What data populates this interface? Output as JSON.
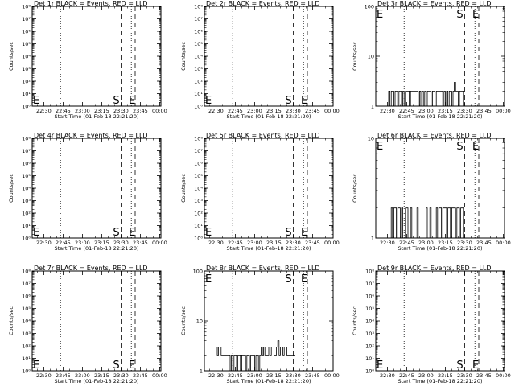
{
  "chart_data": {
    "type": "line",
    "x_tick_labels": [
      "22:30",
      "22:45",
      "23:00",
      "23:15",
      "23:30",
      "23:45",
      "00:00"
    ],
    "x_ticks_minutes": [
      0,
      15,
      30,
      45,
      60,
      75,
      90
    ],
    "xlabel": "Start Time (01-Feb-18 22:21:20)",
    "ylabel": "Counts/sec",
    "x_span_minutes": [
      -9,
      91
    ],
    "markers": {
      "dotted_lines_at": [
        "22:43",
        "23:38"
      ],
      "S_dashed_at": "23:30",
      "E_dashed_at": "23:41",
      "start_E_at_left": true
    },
    "panels": [
      {
        "title": "Det 1r BLACK = Events, RED = LLD",
        "scale": "log",
        "ylim": [
          1,
          100000000
        ],
        "yticks": [
          1,
          10,
          100,
          1000,
          10000,
          100000,
          1000000,
          10000000,
          100000000
        ],
        "ytick_labels": [
          "10⁰",
          "10¹",
          "10²",
          "10³",
          "10⁴",
          "10⁵",
          "10⁶",
          "10⁷",
          "10⁸"
        ],
        "labelS": true,
        "series": {
          "x": [],
          "y": []
        }
      },
      {
        "title": "Det 2r BLACK = Events, RED = LLD",
        "scale": "log",
        "ylim": [
          1,
          100000000
        ],
        "yticks": [
          1,
          10,
          100,
          1000,
          10000,
          100000,
          1000000,
          10000000,
          100000000
        ],
        "ytick_labels": [
          "10⁰",
          "10¹",
          "10²",
          "10³",
          "10⁴",
          "10⁵",
          "10⁶",
          "10⁷",
          "10⁸"
        ],
        "labelS": true,
        "series": {
          "x": [],
          "y": []
        }
      },
      {
        "title": "Det 3r BLACK = Events, RED = LLD",
        "scale": "log",
        "ylim": [
          1,
          100
        ],
        "yticks": [
          1,
          10,
          100
        ],
        "ytick_labels": [
          "1",
          "10",
          "100"
        ],
        "labelS": true,
        "series": {
          "x": [
            0,
            1,
            2,
            3,
            4,
            5,
            6,
            7,
            8,
            9,
            10,
            11,
            12,
            13,
            14,
            15,
            16,
            17,
            18,
            19,
            20,
            21,
            22,
            23,
            24,
            25,
            26,
            27,
            28,
            29,
            30,
            31,
            32,
            33,
            34,
            35,
            36,
            37,
            38,
            39,
            40,
            41,
            42,
            43,
            44,
            45,
            46,
            47,
            48,
            49,
            50,
            51,
            52,
            53,
            54,
            55,
            56,
            57,
            58,
            59,
            60
          ],
          "y": [
            1,
            2,
            1,
            2,
            2,
            1,
            2,
            2,
            1,
            2,
            2,
            1,
            2,
            1,
            2,
            2,
            2,
            1,
            2,
            2,
            2,
            2,
            2,
            2,
            1,
            2,
            1,
            2,
            1,
            2,
            1,
            2,
            2,
            2,
            1,
            2,
            2,
            1,
            2,
            2,
            2,
            2,
            2,
            1,
            2,
            1,
            2,
            1,
            2,
            2,
            1,
            2,
            3,
            2,
            2,
            1,
            2,
            2,
            2,
            1,
            1
          ]
        }
      },
      {
        "title": "Det 4r BLACK = Events, RED = LLD",
        "scale": "log",
        "ylim": [
          1,
          100000000
        ],
        "yticks": [
          1,
          10,
          100,
          1000,
          10000,
          100000,
          1000000,
          10000000,
          100000000
        ],
        "ytick_labels": [
          "10⁰",
          "10¹",
          "10²",
          "10³",
          "10⁴",
          "10⁵",
          "10⁶",
          "10⁷",
          "10⁸"
        ],
        "labelS": true,
        "series": {
          "x": [],
          "y": []
        }
      },
      {
        "title": "Det 5r BLACK = Events, RED = LLD",
        "scale": "log",
        "ylim": [
          1,
          100000000
        ],
        "yticks": [
          1,
          10,
          100,
          1000,
          10000,
          100000,
          1000000,
          10000000,
          100000000
        ],
        "ytick_labels": [
          "10⁰",
          "10¹",
          "10²",
          "10³",
          "10⁴",
          "10⁵",
          "10⁶",
          "10⁷",
          "10⁸"
        ],
        "labelS": true,
        "series": {
          "x": [],
          "y": []
        }
      },
      {
        "title": "Det 6r BLACK = Events, RED = LLD",
        "scale": "log",
        "ylim": [
          1,
          10
        ],
        "yticks": [
          1,
          10
        ],
        "ytick_labels": [
          "1",
          "10"
        ],
        "labelS": true,
        "series": {
          "x": [
            0,
            1,
            2,
            3,
            4,
            5,
            6,
            7,
            8,
            9,
            10,
            11,
            12,
            13,
            14,
            15,
            16,
            17,
            18,
            19,
            20,
            21,
            22,
            23,
            24,
            25,
            26,
            27,
            28,
            29,
            30,
            31,
            32,
            33,
            34,
            35,
            36,
            37,
            38,
            39,
            40,
            41,
            42,
            43,
            44,
            45,
            46,
            47,
            48,
            49,
            50,
            51,
            52,
            53,
            54,
            55,
            56,
            57,
            58,
            59,
            60
          ],
          "y": [
            1,
            1,
            1,
            2,
            1,
            2,
            2,
            1,
            2,
            2,
            1,
            2,
            1,
            1,
            2,
            2,
            1,
            1,
            2,
            1,
            1,
            1,
            1,
            2,
            1,
            1,
            1,
            1,
            1,
            1,
            2,
            1,
            1,
            2,
            1,
            1,
            1,
            1,
            2,
            1,
            2,
            2,
            1,
            2,
            2,
            2,
            1,
            2,
            2,
            1,
            2,
            2,
            2,
            1,
            2,
            2,
            1,
            2,
            2,
            1,
            1
          ]
        }
      },
      {
        "title": "Det 7r BLACK = Events, RED = LLD",
        "scale": "log",
        "ylim": [
          1,
          100000000
        ],
        "yticks": [
          1,
          10,
          100,
          1000,
          10000,
          100000,
          1000000,
          10000000,
          100000000
        ],
        "ytick_labels": [
          "10⁰",
          "10¹",
          "10²",
          "10³",
          "10⁴",
          "10⁵",
          "10⁶",
          "10⁷",
          "10⁸"
        ],
        "labelS": true,
        "series": {
          "x": [],
          "y": []
        }
      },
      {
        "title": "Det 8r BLACK = Events, RED = LLD",
        "scale": "log",
        "ylim": [
          1,
          100
        ],
        "yticks": [
          1,
          10,
          100
        ],
        "ytick_labels": [
          "1",
          "10",
          "100"
        ],
        "labelS": true,
        "series": {
          "x": [
            0,
            1,
            2,
            3,
            4,
            5,
            6,
            7,
            8,
            9,
            10,
            11,
            12,
            13,
            14,
            15,
            16,
            17,
            18,
            19,
            20,
            21,
            22,
            23,
            24,
            25,
            26,
            27,
            28,
            29,
            30,
            31,
            32,
            33,
            34,
            35,
            36,
            37,
            38,
            39,
            40,
            41,
            42,
            43,
            44,
            45,
            46,
            47,
            48,
            49,
            50,
            51,
            52,
            53,
            54,
            55,
            56,
            57,
            58,
            59,
            60
          ],
          "y": [
            3,
            2,
            3,
            3,
            2,
            2,
            2,
            2,
            2,
            2,
            2,
            1,
            2,
            1,
            2,
            2,
            1,
            2,
            2,
            1,
            2,
            2,
            2,
            1,
            2,
            2,
            1,
            2,
            2,
            2,
            1,
            2,
            2,
            1,
            2,
            3,
            2,
            3,
            2,
            2,
            2,
            3,
            2,
            3,
            3,
            2,
            2,
            3,
            4,
            2,
            3,
            3,
            2,
            3,
            3,
            2,
            2,
            2,
            2,
            2,
            2
          ]
        }
      },
      {
        "title": "Det 9r BLACK = Events, RED = LLD",
        "scale": "log",
        "ylim": [
          1,
          100000000
        ],
        "yticks": [
          1,
          10,
          100,
          1000,
          10000,
          100000,
          1000000,
          10000000,
          100000000
        ],
        "ytick_labels": [
          "10⁰",
          "10¹",
          "10²",
          "10³",
          "10⁴",
          "10⁵",
          "10⁶",
          "10⁷",
          "10⁸"
        ],
        "labelS": true,
        "series": {
          "x": [],
          "y": []
        }
      }
    ]
  }
}
